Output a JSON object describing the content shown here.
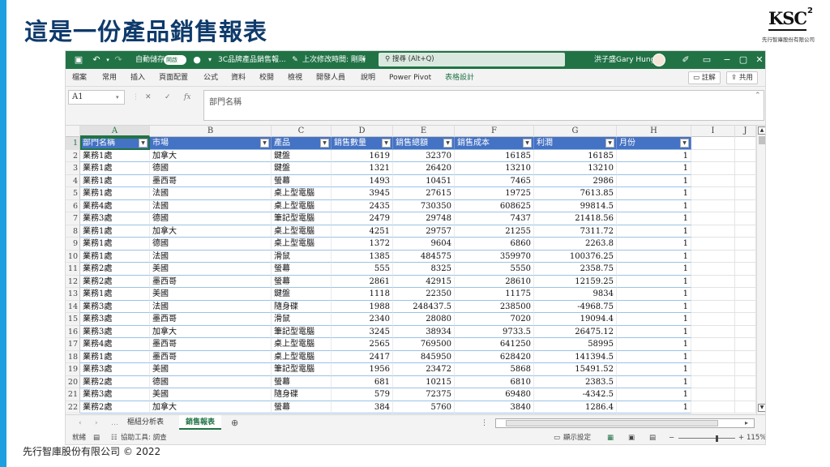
{
  "slide": {
    "title": "這是一份產品銷售報表",
    "footer": "先行智庫股份有限公司 © 2022",
    "logo": {
      "mark": "KSC",
      "sup": "2",
      "company": "先行智庫股份有限公司"
    },
    "accent_color": "#1e9fe0",
    "title_color": "#0e3a6b"
  },
  "excel": {
    "brand_color": "#217346",
    "titlebar": {
      "autosave_label": "自動儲存",
      "autosave_toggle": "開啟",
      "filename": "3C品牌產品銷售報...",
      "save_status": "上次修改時間: 剛剛",
      "search_placeholder": "搜尋 (Alt+Q)",
      "user_name": "洪子盛Gary Hung"
    },
    "ribbon_tabs": [
      "檔案",
      "常用",
      "插入",
      "頁面配置",
      "公式",
      "資料",
      "校閱",
      "檢視",
      "開發人員",
      "說明",
      "Power Pivot",
      "表格設計"
    ],
    "ribbon_buttons": {
      "comments": "註解",
      "share": "共用"
    },
    "namebox": "A1",
    "fx_label": "fx",
    "formula": "部門名稱",
    "columns": [
      "A",
      "B",
      "C",
      "D",
      "E",
      "F",
      "G",
      "H",
      "I",
      "J"
    ],
    "table": {
      "headers": [
        "部門名稱",
        "市場",
        "產品",
        "銷售數量",
        "銷售總額",
        "銷售成本",
        "利潤",
        "月份"
      ],
      "header_fill": "#4472c4",
      "rows": [
        [
          "業務1處",
          "加拿大",
          "鍵盤",
          "1619",
          "32370",
          "16185",
          "16185",
          "1"
        ],
        [
          "業務1處",
          "德國",
          "鍵盤",
          "1321",
          "26420",
          "13210",
          "13210",
          "1"
        ],
        [
          "業務1處",
          "墨西哥",
          "螢幕",
          "1493",
          "10451",
          "7465",
          "2986",
          "1"
        ],
        [
          "業務1處",
          "法國",
          "桌上型電腦",
          "3945",
          "27615",
          "19725",
          "7613.85",
          "1"
        ],
        [
          "業務4處",
          "法國",
          "桌上型電腦",
          "2435",
          "730350",
          "608625",
          "99814.5",
          "1"
        ],
        [
          "業務3處",
          "德國",
          "筆記型電腦",
          "2479",
          "29748",
          "7437",
          "21418.56",
          "1"
        ],
        [
          "業務1處",
          "加拿大",
          "桌上型電腦",
          "4251",
          "29757",
          "21255",
          "7311.72",
          "1"
        ],
        [
          "業務1處",
          "德國",
          "桌上型電腦",
          "1372",
          "9604",
          "6860",
          "2263.8",
          "1"
        ],
        [
          "業務1處",
          "法國",
          "滑鼠",
          "1385",
          "484575",
          "359970",
          "100376.25",
          "1"
        ],
        [
          "業務2處",
          "美國",
          "螢幕",
          "555",
          "8325",
          "5550",
          "2358.75",
          "1"
        ],
        [
          "業務2處",
          "墨西哥",
          "螢幕",
          "2861",
          "42915",
          "28610",
          "12159.25",
          "1"
        ],
        [
          "業務1處",
          "美國",
          "鍵盤",
          "1118",
          "22350",
          "11175",
          "9834",
          "1"
        ],
        [
          "業務3處",
          "法國",
          "隨身碟",
          "1988",
          "248437.5",
          "238500",
          "-4968.75",
          "1"
        ],
        [
          "業務3處",
          "墨西哥",
          "滑鼠",
          "2340",
          "28080",
          "7020",
          "19094.4",
          "1"
        ],
        [
          "業務3處",
          "加拿大",
          "筆記型電腦",
          "3245",
          "38934",
          "9733.5",
          "26475.12",
          "1"
        ],
        [
          "業務4處",
          "墨西哥",
          "桌上型電腦",
          "2565",
          "769500",
          "641250",
          "58995",
          "1"
        ],
        [
          "業務1處",
          "墨西哥",
          "桌上型電腦",
          "2417",
          "845950",
          "628420",
          "141394.5",
          "1"
        ],
        [
          "業務3處",
          "美國",
          "筆記型電腦",
          "1956",
          "23472",
          "5868",
          "15491.52",
          "1"
        ],
        [
          "業務2處",
          "德國",
          "螢幕",
          "681",
          "10215",
          "6810",
          "2383.5",
          "1"
        ],
        [
          "業務3處",
          "美國",
          "隨身碟",
          "579",
          "72375",
          "69480",
          "-4342.5",
          "1"
        ],
        [
          "業務2處",
          "加拿大",
          "螢幕",
          "384",
          "5760",
          "3840",
          "1286.4",
          "1"
        ]
      ]
    },
    "sheets": [
      {
        "name": "樞紐分析表",
        "active": false
      },
      {
        "name": "銷售報表",
        "active": true
      }
    ],
    "status": {
      "ready": "就緒",
      "accessibility": "協助工具: 調查",
      "display_settings": "顯示設定",
      "zoom": "115%",
      "zoom_minus": "−",
      "zoom_plus": "+"
    }
  }
}
